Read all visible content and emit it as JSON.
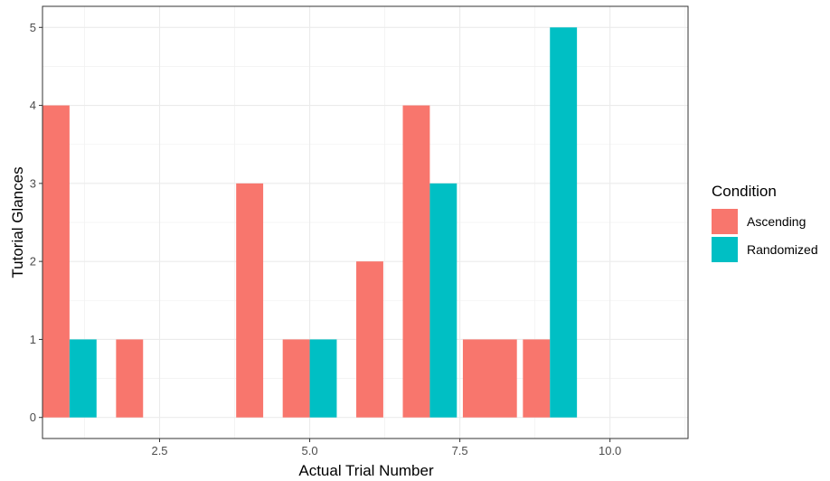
{
  "chart_data": {
    "type": "bar",
    "xlabel": "Actual Trial Number",
    "ylabel": "Tutorial Glances",
    "x_ticks": [
      2.5,
      5.0,
      7.5,
      10.0
    ],
    "x_tick_labels": [
      "2.5",
      "5.0",
      "7.5",
      "10.0"
    ],
    "y_ticks": [
      0,
      1,
      2,
      3,
      4,
      5
    ],
    "y_tick_labels": [
      "0",
      "1",
      "2",
      "3",
      "4",
      "5"
    ],
    "xlim": [
      0.55,
      11.3
    ],
    "ylim": [
      -0.27,
      5.27
    ],
    "grid": true,
    "legend": {
      "title": "Condition",
      "position": "right",
      "entries": [
        "Ascending",
        "Randomized"
      ]
    },
    "colors": {
      "Ascending": "#F8766D",
      "Randomized": "#00BFC4"
    },
    "bars": [
      {
        "series": "Ascending",
        "x": 1,
        "value": 4,
        "dodge": "left"
      },
      {
        "series": "Randomized",
        "x": 1,
        "value": 1,
        "dodge": "right"
      },
      {
        "series": "Ascending",
        "x": 2,
        "value": 1,
        "dodge": "none"
      },
      {
        "series": "Ascending",
        "x": 4,
        "value": 3,
        "dodge": "none"
      },
      {
        "series": "Ascending",
        "x": 5,
        "value": 1,
        "dodge": "left"
      },
      {
        "series": "Randomized",
        "x": 5,
        "value": 1,
        "dodge": "right"
      },
      {
        "series": "Ascending",
        "x": 6,
        "value": 2,
        "dodge": "none"
      },
      {
        "series": "Ascending",
        "x": 7,
        "value": 4,
        "dodge": "left"
      },
      {
        "series": "Randomized",
        "x": 7,
        "value": 3,
        "dodge": "right"
      },
      {
        "series": "Ascending",
        "x": 8,
        "value": 1,
        "dodge": "full"
      },
      {
        "series": "Ascending",
        "x": 9,
        "value": 1,
        "dodge": "left"
      },
      {
        "series": "Randomized",
        "x": 9,
        "value": 5,
        "dodge": "right"
      }
    ]
  }
}
